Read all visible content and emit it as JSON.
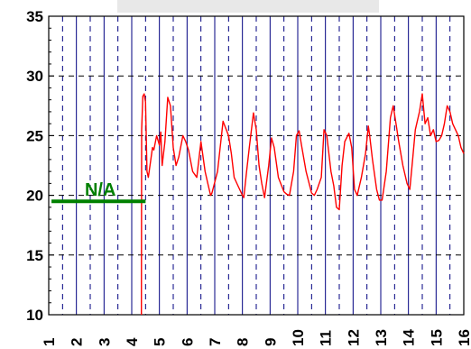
{
  "chart_data": {
    "type": "line",
    "title": "",
    "xlabel": "",
    "ylabel": "",
    "xlim": [
      1,
      16
    ],
    "ylim": [
      10,
      35
    ],
    "grid": true,
    "y_ticks": [
      10,
      15,
      20,
      25,
      30,
      35
    ],
    "x_ticks": [
      1,
      2,
      3,
      4,
      5,
      6,
      7,
      8,
      9,
      10,
      11,
      12,
      13,
      14,
      15,
      16
    ],
    "x_tick_labels": [
      "1",
      "2",
      "3",
      "4",
      "5",
      "6",
      "7",
      "8",
      "9",
      "10",
      "11",
      "12",
      "13",
      "14",
      "15",
      "16"
    ],
    "annotation": {
      "text": "N/A",
      "color": "#008000",
      "x_range": [
        1.1,
        4.5
      ],
      "y": 19.5
    },
    "series": [
      {
        "color": "#ff0000",
        "x": [
          4.35,
          4.36,
          4.4,
          4.45,
          4.5,
          4.55,
          4.6,
          4.75,
          4.8,
          4.9,
          5.0,
          5.05,
          5.1,
          5.2,
          5.3,
          5.4,
          5.5,
          5.6,
          5.7,
          5.85,
          5.95,
          6.05,
          6.2,
          6.35,
          6.5,
          6.65,
          6.75,
          6.85,
          6.9,
          7.1,
          7.3,
          7.5,
          7.6,
          7.7,
          7.8,
          7.9,
          8.0,
          8.05,
          8.15,
          8.25,
          8.4,
          8.5,
          8.6,
          8.7,
          8.8,
          8.95,
          9.05,
          9.15,
          9.3,
          9.5,
          9.6,
          9.7,
          9.85,
          9.95,
          10.05,
          10.15,
          10.3,
          10.5,
          10.6,
          10.7,
          10.85,
          10.95,
          11.05,
          11.2,
          11.3,
          11.4,
          11.5,
          11.6,
          11.7,
          11.85,
          11.95,
          12.05,
          12.15,
          12.3,
          12.45,
          12.55,
          12.6,
          12.7,
          12.85,
          12.95,
          13.05,
          13.2,
          13.35,
          13.45,
          13.55,
          13.65,
          13.8,
          13.95,
          14.05,
          14.15,
          14.25,
          14.4,
          14.5,
          14.6,
          14.7,
          14.8,
          14.9,
          15.0,
          15.1,
          15.2,
          15.3,
          15.4,
          15.5,
          15.6,
          15.7,
          15.8,
          15.9,
          16.0
        ],
        "y": [
          10,
          25.5,
          28.3,
          28.5,
          27.8,
          22.0,
          21.5,
          24.0,
          23.8,
          25.0,
          24.2,
          25.3,
          22.5,
          24.5,
          28.2,
          27.5,
          24.0,
          22.5,
          23.2,
          25.0,
          24.5,
          23.8,
          22.0,
          21.5,
          24.5,
          22.0,
          21.0,
          20.0,
          20.2,
          22.0,
          26.2,
          25.0,
          23.5,
          21.5,
          21.0,
          20.5,
          20.0,
          19.8,
          22.0,
          24.0,
          26.9,
          25.5,
          22.5,
          21.0,
          19.8,
          22.5,
          24.8,
          24.0,
          21.5,
          20.3,
          20.1,
          20.0,
          22.0,
          25.0,
          25.4,
          24.0,
          22.0,
          20.2,
          20.0,
          20.5,
          21.5,
          25.5,
          25.0,
          22.0,
          20.8,
          19.0,
          18.8,
          22.5,
          24.5,
          25.2,
          24.0,
          20.5,
          20.0,
          21.5,
          23.5,
          25.8,
          25.0,
          23.0,
          20.5,
          19.6,
          19.6,
          22.0,
          26.5,
          27.5,
          26.0,
          24.5,
          22.5,
          21.0,
          20.5,
          23.0,
          25.5,
          27.0,
          28.5,
          26.0,
          26.5,
          25.0,
          25.5,
          24.5,
          24.6,
          25.0,
          26.0,
          27.5,
          27.0,
          26.0,
          25.5,
          25.0,
          24.0,
          23.5
        ]
      }
    ]
  }
}
